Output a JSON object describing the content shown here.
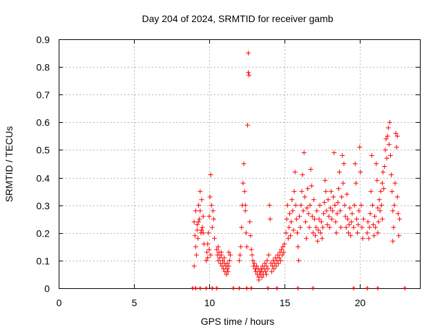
{
  "chart_data": {
    "type": "scatter",
    "title": "Day 204 of 2024, SRMTID for receiver gamb",
    "xlabel": "GPS time / hours",
    "ylabel": "SRMTID / TECUs",
    "xlim": [
      0,
      24
    ],
    "ylim": [
      0,
      0.9
    ],
    "x_ticks": [
      0,
      5,
      10,
      15,
      20
    ],
    "y_ticks": [
      0,
      0.1,
      0.2,
      0.3,
      0.4,
      0.5,
      0.6,
      0.7,
      0.8,
      0.9
    ],
    "x_tick_labels": [
      "0",
      "5",
      "10",
      "15",
      "20"
    ],
    "y_tick_labels": [
      "0",
      "0.1",
      "0.2",
      "0.3",
      "0.4",
      "0.5",
      "0.6",
      "0.7",
      "0.8",
      "0.9"
    ],
    "grid": true,
    "marker": "+",
    "color": "#ff0000",
    "series": [
      {
        "name": "SRMTID",
        "points": [
          [
            9.0,
            0.24
          ],
          [
            9.05,
            0.19
          ],
          [
            9.1,
            0.28
          ],
          [
            9.15,
            0.12
          ],
          [
            9.2,
            0.23
          ],
          [
            9.25,
            0.18
          ],
          [
            9.3,
            0.3
          ],
          [
            9.35,
            0.25
          ],
          [
            9.4,
            0.35
          ],
          [
            9.45,
            0.2
          ],
          [
            9.5,
            0.32
          ],
          [
            9.55,
            0.22
          ],
          [
            9.6,
            0.26
          ],
          [
            9.65,
            0.16
          ],
          [
            9.0,
            0.08
          ],
          [
            9.1,
            0.15
          ],
          [
            9.2,
            0.21
          ],
          [
            9.3,
            0.24
          ],
          [
            9.4,
            0.28
          ],
          [
            9.5,
            0.21
          ],
          [
            9.6,
            0.2
          ],
          [
            9.8,
            0.1
          ],
          [
            9.85,
            0.13
          ],
          [
            9.9,
            0.16
          ],
          [
            9.95,
            0.2
          ],
          [
            10.0,
            0.26
          ],
          [
            10.05,
            0.33
          ],
          [
            10.1,
            0.41
          ],
          [
            10.15,
            0.3
          ],
          [
            10.2,
            0.22
          ],
          [
            10.25,
            0.28
          ],
          [
            10.3,
            0.25
          ],
          [
            10.35,
            0.18
          ],
          [
            9.9,
            0.11
          ],
          [
            10.0,
            0.14
          ],
          [
            10.1,
            0.12
          ],
          [
            10.5,
            0.14
          ],
          [
            10.55,
            0.12
          ],
          [
            10.6,
            0.1
          ],
          [
            10.65,
            0.13
          ],
          [
            10.7,
            0.11
          ],
          [
            10.75,
            0.09
          ],
          [
            10.8,
            0.12
          ],
          [
            10.85,
            0.08
          ],
          [
            10.9,
            0.1
          ],
          [
            10.95,
            0.07
          ],
          [
            11.0,
            0.09
          ],
          [
            11.05,
            0.06
          ],
          [
            11.1,
            0.08
          ],
          [
            11.15,
            0.05
          ],
          [
            11.2,
            0.07
          ],
          [
            11.25,
            0.06
          ],
          [
            11.3,
            0.08
          ],
          [
            11.35,
            0.1
          ],
          [
            11.4,
            0.12
          ],
          [
            10.6,
            0.15
          ],
          [
            10.8,
            0.13
          ],
          [
            11.0,
            0.11
          ],
          [
            11.2,
            0.09
          ],
          [
            11.3,
            0.13
          ],
          [
            12.0,
            0.1
          ],
          [
            12.05,
            0.12
          ],
          [
            12.1,
            0.15
          ],
          [
            12.15,
            0.22
          ],
          [
            12.2,
            0.3
          ],
          [
            12.25,
            0.38
          ],
          [
            12.3,
            0.45
          ],
          [
            12.35,
            0.35
          ],
          [
            12.4,
            0.28
          ],
          [
            12.45,
            0.2
          ],
          [
            12.5,
            0.15
          ],
          [
            12.55,
            0.59
          ],
          [
            12.6,
            0.78
          ],
          [
            12.65,
            0.77
          ],
          [
            12.7,
            0.24
          ],
          [
            12.75,
            0.19
          ],
          [
            12.6,
            0.85
          ],
          [
            12.4,
            0.3
          ],
          [
            12.8,
            0.14
          ],
          [
            12.85,
            0.12
          ],
          [
            12.9,
            0.1
          ],
          [
            12.95,
            0.08
          ],
          [
            13.0,
            0.09
          ],
          [
            13.05,
            0.07
          ],
          [
            13.1,
            0.06
          ],
          [
            13.15,
            0.08
          ],
          [
            13.2,
            0.05
          ],
          [
            13.25,
            0.07
          ],
          [
            13.3,
            0.04
          ],
          [
            13.35,
            0.06
          ],
          [
            13.4,
            0.05
          ],
          [
            13.45,
            0.07
          ],
          [
            13.5,
            0.06
          ],
          [
            13.55,
            0.08
          ],
          [
            13.6,
            0.05
          ],
          [
            13.65,
            0.07
          ],
          [
            13.7,
            0.09
          ],
          [
            13.75,
            0.06
          ],
          [
            13.8,
            0.08
          ],
          [
            13.85,
            0.1
          ],
          [
            13.9,
            0.07
          ],
          [
            13.95,
            0.12
          ],
          [
            14.0,
            0.3
          ],
          [
            14.05,
            0.25
          ],
          [
            14.1,
            0.09
          ],
          [
            14.15,
            0.06
          ],
          [
            14.2,
            0.08
          ],
          [
            14.25,
            0.1
          ],
          [
            14.3,
            0.07
          ],
          [
            14.35,
            0.09
          ],
          [
            14.4,
            0.11
          ],
          [
            14.45,
            0.08
          ],
          [
            14.5,
            0.1
          ],
          [
            14.55,
            0.12
          ],
          [
            14.6,
            0.09
          ],
          [
            14.65,
            0.11
          ],
          [
            14.7,
            0.13
          ],
          [
            14.75,
            0.1
          ],
          [
            14.8,
            0.14
          ],
          [
            14.85,
            0.12
          ],
          [
            14.9,
            0.15
          ],
          [
            14.95,
            0.13
          ],
          [
            15.0,
            0.16
          ],
          [
            13.3,
            0.03
          ],
          [
            13.5,
            0.04
          ],
          [
            13.8,
            0.05
          ],
          [
            15.1,
            0.2
          ],
          [
            15.15,
            0.25
          ],
          [
            15.2,
            0.3
          ],
          [
            15.25,
            0.18
          ],
          [
            15.3,
            0.22
          ],
          [
            15.35,
            0.27
          ],
          [
            15.4,
            0.19
          ],
          [
            15.45,
            0.24
          ],
          [
            15.5,
            0.32
          ],
          [
            15.55,
            0.28
          ],
          [
            15.6,
            0.21
          ],
          [
            15.65,
            0.35
          ],
          [
            15.7,
            0.42
          ],
          [
            15.75,
            0.3
          ],
          [
            15.8,
            0.25
          ],
          [
            15.85,
            0.2
          ],
          [
            15.9,
            0.15
          ],
          [
            15.95,
            0.1
          ],
          [
            16.0,
            0.26
          ],
          [
            16.05,
            0.22
          ],
          [
            16.1,
            0.3
          ],
          [
            16.15,
            0.35
          ],
          [
            16.2,
            0.41
          ],
          [
            16.25,
            0.28
          ],
          [
            16.3,
            0.49
          ],
          [
            16.35,
            0.33
          ],
          [
            16.4,
            0.24
          ],
          [
            16.45,
            0.18
          ],
          [
            16.5,
            0.29
          ],
          [
            16.55,
            0.36
          ],
          [
            16.6,
            0.27
          ],
          [
            16.65,
            0.22
          ],
          [
            16.7,
            0.3
          ],
          [
            16.75,
            0.43
          ],
          [
            16.8,
            0.37
          ],
          [
            16.85,
            0.26
          ],
          [
            16.9,
            0.2
          ],
          [
            16.95,
            0.32
          ],
          [
            17.0,
            0.25
          ],
          [
            17.05,
            0.19
          ],
          [
            17.1,
            0.22
          ],
          [
            17.15,
            0.28
          ],
          [
            17.2,
            0.17
          ],
          [
            17.25,
            0.21
          ],
          [
            17.3,
            0.25
          ],
          [
            17.35,
            0.3
          ],
          [
            17.4,
            0.2
          ],
          [
            17.45,
            0.24
          ],
          [
            17.5,
            0.18
          ],
          [
            17.55,
            0.22
          ],
          [
            17.6,
            0.27
          ],
          [
            17.65,
            0.31
          ],
          [
            17.7,
            0.39
          ],
          [
            17.75,
            0.35
          ],
          [
            17.8,
            0.28
          ],
          [
            17.85,
            0.23
          ],
          [
            17.9,
            0.32
          ],
          [
            17.95,
            0.26
          ],
          [
            18.0,
            0.22
          ],
          [
            18.05,
            0.29
          ],
          [
            18.1,
            0.35
          ],
          [
            18.15,
            0.25
          ],
          [
            18.2,
            0.28
          ],
          [
            18.25,
            0.33
          ],
          [
            18.3,
            0.49
          ],
          [
            18.35,
            0.3
          ],
          [
            18.4,
            0.24
          ],
          [
            18.45,
            0.2
          ],
          [
            18.5,
            0.27
          ],
          [
            18.55,
            0.31
          ],
          [
            18.6,
            0.36
          ],
          [
            18.65,
            0.42
          ],
          [
            18.7,
            0.28
          ],
          [
            18.75,
            0.22
          ],
          [
            18.8,
            0.33
          ],
          [
            18.85,
            0.48
          ],
          [
            18.9,
            0.38
          ],
          [
            18.95,
            0.45
          ],
          [
            19.0,
            0.3
          ],
          [
            19.05,
            0.26
          ],
          [
            19.1,
            0.22
          ],
          [
            19.15,
            0.34
          ],
          [
            19.2,
            0.25
          ],
          [
            19.25,
            0.2
          ],
          [
            19.3,
            0.23
          ],
          [
            19.35,
            0.29
          ],
          [
            19.4,
            0.19
          ],
          [
            19.45,
            0.24
          ],
          [
            19.5,
            0.27
          ],
          [
            19.6,
            0.22
          ],
          [
            19.65,
            0.3
          ],
          [
            19.7,
            0.45
          ],
          [
            19.75,
            0.38
          ],
          [
            19.8,
            0.25
          ],
          [
            19.85,
            0.2
          ],
          [
            19.9,
            0.23
          ],
          [
            19.95,
            0.28
          ],
          [
            20.0,
            0.51
          ],
          [
            20.05,
            0.42
          ],
          [
            20.1,
            0.3
          ],
          [
            20.15,
            0.22
          ],
          [
            20.2,
            0.18
          ],
          [
            20.25,
            0.25
          ],
          [
            20.5,
            0.2
          ],
          [
            20.55,
            0.24
          ],
          [
            20.6,
            0.18
          ],
          [
            20.65,
            0.22
          ],
          [
            20.7,
            0.27
          ],
          [
            20.75,
            0.35
          ],
          [
            20.8,
            0.48
          ],
          [
            20.85,
            0.3
          ],
          [
            20.9,
            0.23
          ],
          [
            20.95,
            0.19
          ],
          [
            21.0,
            0.26
          ],
          [
            21.05,
            0.22
          ],
          [
            21.1,
            0.45
          ],
          [
            21.15,
            0.39
          ],
          [
            21.2,
            0.29
          ],
          [
            21.25,
            0.24
          ],
          [
            21.3,
            0.32
          ],
          [
            21.35,
            0.28
          ],
          [
            21.4,
            0.35
          ],
          [
            21.45,
            0.3
          ],
          [
            21.5,
            0.38
          ],
          [
            21.55,
            0.42
          ],
          [
            21.6,
            0.36
          ],
          [
            21.65,
            0.44
          ],
          [
            21.7,
            0.5
          ],
          [
            21.75,
            0.54
          ],
          [
            21.8,
            0.47
          ],
          [
            21.85,
            0.55
          ],
          [
            21.9,
            0.58
          ],
          [
            21.95,
            0.52
          ],
          [
            22.0,
            0.6
          ],
          [
            22.05,
            0.48
          ],
          [
            22.1,
            0.41
          ],
          [
            22.15,
            0.35
          ],
          [
            22.2,
            0.28
          ],
          [
            22.25,
            0.22
          ],
          [
            22.3,
            0.3
          ],
          [
            22.35,
            0.38
          ],
          [
            22.4,
            0.56
          ],
          [
            22.45,
            0.51
          ],
          [
            22.5,
            0.33
          ],
          [
            22.55,
            0.27
          ],
          [
            22.6,
            0.19
          ],
          [
            22.65,
            0.25
          ],
          [
            22.5,
            0.55
          ],
          [
            21.5,
            0.25
          ],
          [
            21.2,
            0.2
          ],
          [
            22.2,
            0.17
          ]
        ]
      }
    ],
    "zero_markers_x": [
      8.9,
      9.1,
      9.4,
      9.8,
      10.2,
      10.5,
      11.6,
      12.0,
      12.5,
      12.8,
      13.9,
      14.5,
      15.9,
      16.9,
      19.6,
      20.5,
      21.2,
      23.0
    ]
  }
}
